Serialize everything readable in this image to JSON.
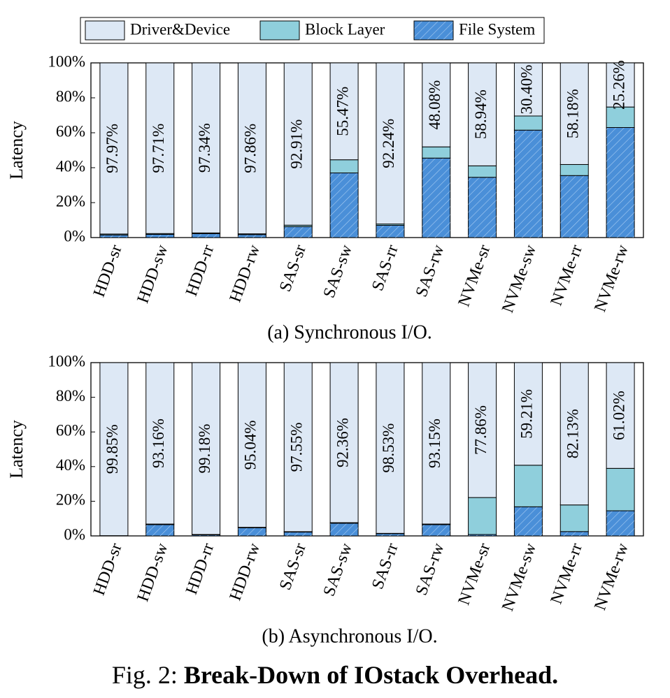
{
  "chart_data": [
    {
      "type": "bar",
      "stacked": true,
      "title": "(a) Synchronous I/O.",
      "ylabel": "Latency",
      "categories": [
        "HDD-sr",
        "HDD-sw",
        "HDD-rr",
        "HDD-rw",
        "SAS-sr",
        "SAS-sw",
        "SAS-rr",
        "SAS-rw",
        "NVMe-sr",
        "NVMe-sw",
        "NVMe-rr",
        "NVMe-rw"
      ],
      "series": [
        {
          "name": "File System",
          "color": "#4a8fd8",
          "hatch": true,
          "values": [
            1.5,
            1.8,
            2.2,
            1.7,
            6.2,
            37.0,
            7.0,
            45.5,
            34.5,
            61.5,
            35.5,
            63.0
          ]
        },
        {
          "name": "Block Layer",
          "color": "#8fcfdc",
          "values": [
            0.53,
            0.49,
            0.46,
            0.44,
            0.89,
            7.53,
            0.76,
            6.42,
            6.56,
            8.1,
            6.32,
            11.74
          ]
        },
        {
          "name": "Driver&Device",
          "color": "#dde8f5",
          "values": [
            97.97,
            97.71,
            97.34,
            97.86,
            92.91,
            55.47,
            92.24,
            48.08,
            58.94,
            30.4,
            58.18,
            25.26
          ],
          "value_labels": [
            "97.97%",
            "97.71%",
            "97.34%",
            "97.86%",
            "92.91%",
            "55.47%",
            "92.24%",
            "48.08%",
            "58.94%",
            "30.40%",
            "58.18%",
            "25.26%"
          ]
        }
      ],
      "ylim": [
        0,
        100
      ],
      "yticks": [
        {
          "value": 0,
          "label": "0%"
        },
        {
          "value": 20,
          "label": "20%"
        },
        {
          "value": 40,
          "label": "40%"
        },
        {
          "value": 60,
          "label": "60%"
        },
        {
          "value": 80,
          "label": "80%"
        },
        {
          "value": 100,
          "label": "100%"
        }
      ]
    },
    {
      "type": "bar",
      "stacked": true,
      "title": "(b) Asynchronous I/O.",
      "ylabel": "Latency",
      "categories": [
        "HDD-sr",
        "HDD-sw",
        "HDD-rr",
        "HDD-rw",
        "SAS-sr",
        "SAS-sw",
        "SAS-rr",
        "SAS-rw",
        "NVMe-sr",
        "NVMe-sw",
        "NVMe-rr",
        "NVMe-rw"
      ],
      "series": [
        {
          "color": "#4a8fd8",
          "hatch": true,
          "values": [
            0.1,
            6.5,
            0.6,
            4.7,
            2.2,
            7.3,
            1.3,
            6.5,
            0.8,
            16.8,
            2.5,
            14.5
          ]
        },
        {
          "color": "#8fcfdc",
          "values": [
            0.05,
            0.34,
            0.22,
            0.26,
            0.25,
            0.34,
            0.17,
            0.35,
            21.34,
            23.99,
            15.37,
            24.48
          ]
        },
        {
          "color": "#dde8f5",
          "values": [
            99.85,
            93.16,
            99.18,
            95.04,
            97.55,
            92.36,
            98.53,
            93.15,
            77.86,
            59.21,
            82.13,
            61.02
          ],
          "value_labels": [
            "99.85%",
            "93.16%",
            "99.18%",
            "95.04%",
            "97.55%",
            "92.36%",
            "98.53%",
            "93.15%",
            "77.86%",
            "59.21%",
            "82.13%",
            "61.02%"
          ]
        }
      ],
      "ylim": [
        0,
        100
      ],
      "yticks": [
        {
          "value": 0,
          "label": "0%"
        },
        {
          "value": 20,
          "label": "20%"
        },
        {
          "value": 40,
          "label": "40%"
        },
        {
          "value": 60,
          "label": "60%"
        },
        {
          "value": 80,
          "label": "80%"
        },
        {
          "value": 100,
          "label": "100%"
        }
      ]
    }
  ],
  "caption": {
    "label": "Fig. 2:",
    "text": "Break-Down of IOstack Overhead."
  }
}
